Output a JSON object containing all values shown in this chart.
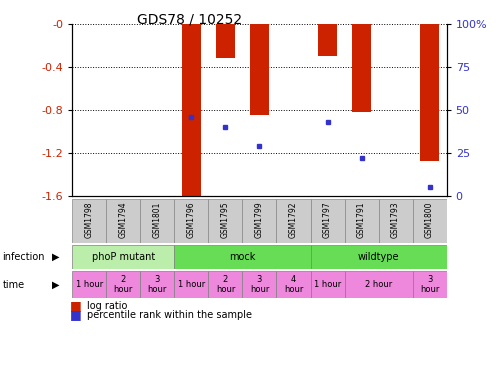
{
  "title": "GDS78 / 10252",
  "samples": [
    "GSM1798",
    "GSM1794",
    "GSM1801",
    "GSM1796",
    "GSM1795",
    "GSM1799",
    "GSM1792",
    "GSM1797",
    "GSM1791",
    "GSM1793",
    "GSM1800"
  ],
  "log_ratio": [
    0,
    0,
    0,
    -1.62,
    -0.32,
    -0.85,
    0,
    -0.3,
    -0.82,
    0,
    -1.28
  ],
  "percentile": [
    null,
    null,
    null,
    46,
    40,
    29,
    null,
    43,
    22,
    null,
    5
  ],
  "ylim_left": [
    -1.6,
    0
  ],
  "ylim_right": [
    0,
    100
  ],
  "yticks_left": [
    0,
    -0.4,
    -0.8,
    -1.2,
    -1.6
  ],
  "yticks_right": [
    0,
    25,
    50,
    75,
    100
  ],
  "bar_color": "#cc2200",
  "marker_color": "#3333cc",
  "infection_groups": [
    {
      "label": "phoP mutant",
      "start": 0,
      "end": 3,
      "color": "#bbeeaa"
    },
    {
      "label": "mock",
      "start": 3,
      "end": 7,
      "color": "#66dd55"
    },
    {
      "label": "wildtype",
      "start": 7,
      "end": 11,
      "color": "#66dd55"
    }
  ],
  "time_starts": [
    0,
    1,
    2,
    3,
    4,
    5,
    6,
    7,
    8,
    10
  ],
  "time_ends": [
    1,
    2,
    3,
    4,
    5,
    6,
    7,
    8,
    10,
    11
  ],
  "time_labels": [
    "1 hour",
    "2\nhour",
    "3\nhour",
    "1 hour",
    "2\nhour",
    "3\nhour",
    "4\nhour",
    "1 hour",
    "2 hour",
    "3\nhour"
  ],
  "time_color": "#ee88dd",
  "infection_label": "infection",
  "time_label": "time",
  "legend_log_ratio": "log ratio",
  "legend_percentile": "percentile rank within the sample",
  "bg_color": "#ffffff",
  "axis_color_left": "#cc2200",
  "axis_color_right": "#3333cc",
  "sample_bg_color": "#cccccc",
  "sample_border_color": "#888888"
}
